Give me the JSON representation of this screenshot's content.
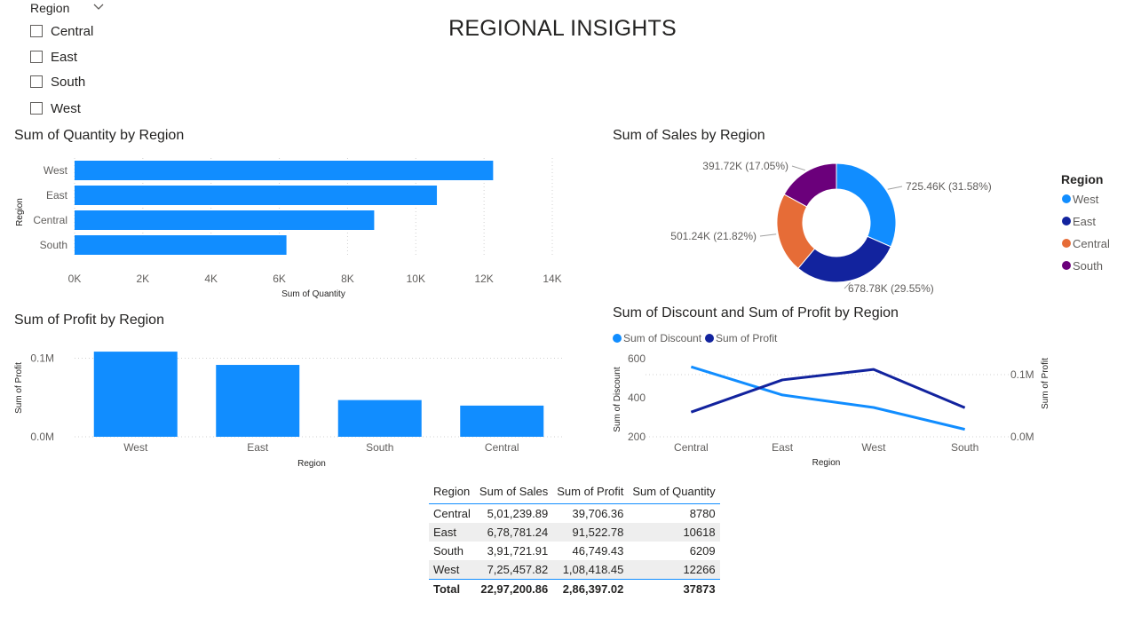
{
  "report": {
    "title": "REGIONAL INSIGHTS"
  },
  "slicer": {
    "title": "Region",
    "items": [
      "Central",
      "East",
      "South",
      "West"
    ]
  },
  "colors": {
    "blue": "#118dff",
    "dark_blue": "#12239e",
    "orange": "#e66c37",
    "purple": "#6b007b"
  },
  "chart_data": [
    {
      "id": "quantity",
      "type": "bar",
      "orientation": "horizontal",
      "title": "Sum of Quantity by Region",
      "xlabel": "Sum of Quantity",
      "ylabel": "Region",
      "categories": [
        "West",
        "East",
        "Central",
        "South"
      ],
      "values": [
        12266,
        10618,
        8780,
        6209
      ],
      "xlim": [
        0,
        14000
      ],
      "ticks": [
        "0K",
        "2K",
        "4K",
        "6K",
        "8K",
        "10K",
        "12K",
        "14K"
      ],
      "grid": true
    },
    {
      "id": "sales",
      "type": "pie",
      "donut": true,
      "title": "Sum of Sales by Region",
      "legend_title": "Region",
      "legend_position": "right",
      "labels": [
        "West",
        "East",
        "Central",
        "South"
      ],
      "values": [
        725457.82,
        678781.24,
        501239.89,
        391721.91
      ],
      "data_labels": [
        "725.46K (31.58%)",
        "678.78K (29.55%)",
        "501.24K (21.82%)",
        "391.72K (17.05%)"
      ],
      "colors": [
        "#118dff",
        "#12239e",
        "#e66c37",
        "#6b007b"
      ]
    },
    {
      "id": "profit",
      "type": "bar",
      "orientation": "vertical",
      "title": "Sum of Profit by Region",
      "xlabel": "Region",
      "ylabel": "Sum of Profit",
      "categories": [
        "West",
        "East",
        "South",
        "Central"
      ],
      "values": [
        108418.45,
        91522.78,
        46749.43,
        39706.36
      ],
      "ylim": [
        0,
        130000
      ],
      "ticks": [
        {
          "v": 0,
          "label": "0.0M"
        },
        {
          "v": 100000,
          "label": "0.1M"
        }
      ],
      "grid": true
    },
    {
      "id": "discount_profit",
      "type": "line",
      "title": "Sum of Discount and Sum of Profit by Region",
      "xlabel": "Region",
      "ylabel": "Sum of Discount",
      "y2label": "Sum of Profit",
      "categories": [
        "Central",
        "East",
        "West",
        "South"
      ],
      "legend_position": "top-left",
      "series": [
        {
          "name": "Sum of Discount",
          "axis": "left",
          "color": "#118dff",
          "values": [
            558,
            414,
            350,
            238
          ]
        },
        {
          "name": "Sum of Profit",
          "axis": "right",
          "color": "#12239e",
          "values": [
            39706.36,
            91522.78,
            108418.45,
            46749.43
          ]
        }
      ],
      "ylim": [
        200,
        600
      ],
      "yticks": [
        "600",
        "400",
        "200"
      ],
      "y2lim": [
        0,
        140000
      ],
      "y2ticks": [
        {
          "v": 100000,
          "label": "0.1M"
        },
        {
          "v": 0,
          "label": "0.0M"
        }
      ]
    }
  ],
  "table": {
    "headers": [
      "Region",
      "Sum of Sales",
      "Sum of Profit",
      "Sum of Quantity"
    ],
    "rows": [
      [
        "Central",
        "5,01,239.89",
        "39,706.36",
        "8780"
      ],
      [
        "East",
        "6,78,781.24",
        "91,522.78",
        "10618"
      ],
      [
        "South",
        "3,91,721.91",
        "46,749.43",
        "6209"
      ],
      [
        "West",
        "7,25,457.82",
        "1,08,418.45",
        "12266"
      ]
    ],
    "total": [
      "Total",
      "22,97,200.86",
      "2,86,397.02",
      "37873"
    ]
  }
}
